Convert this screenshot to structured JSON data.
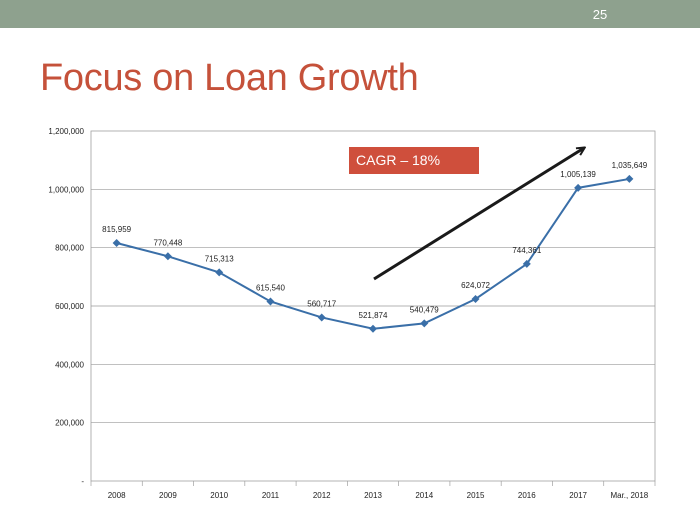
{
  "slide": {
    "number": "25",
    "title": "Focus on Loan Growth"
  },
  "colors": {
    "topbar": "#8ea18e",
    "title": "#c5513a",
    "line": "#3a6fa8",
    "callout": "#cf4f3c"
  },
  "callout": {
    "text": "CAGR – 18%"
  },
  "chart_data": {
    "type": "line",
    "categories": [
      "2008",
      "2009",
      "2010",
      "2011",
      "2012",
      "2013",
      "2014",
      "2015",
      "2016",
      "2017",
      "Mar., 2018"
    ],
    "series": [
      {
        "values": [
          815959,
          770448,
          715313,
          615540,
          560717,
          521874,
          540479,
          624072,
          744361,
          1005139,
          1035649
        ]
      }
    ],
    "data_labels": [
      "815,959",
      "770,448",
      "715,313",
      "615,540",
      "560,717",
      "521,874",
      "540,479",
      "624,072",
      "744,361",
      "1,005,139",
      "1,035,649"
    ],
    "y_ticks": [
      "-",
      "200,000",
      "400,000",
      "600,000",
      "800,000",
      "1,000,000",
      "1,200,000"
    ],
    "ylim": [
      0,
      1200000
    ],
    "grid": true,
    "legend": "none",
    "annotation": {
      "text": "CAGR – 18%",
      "trend_arrow": "up-right"
    }
  }
}
